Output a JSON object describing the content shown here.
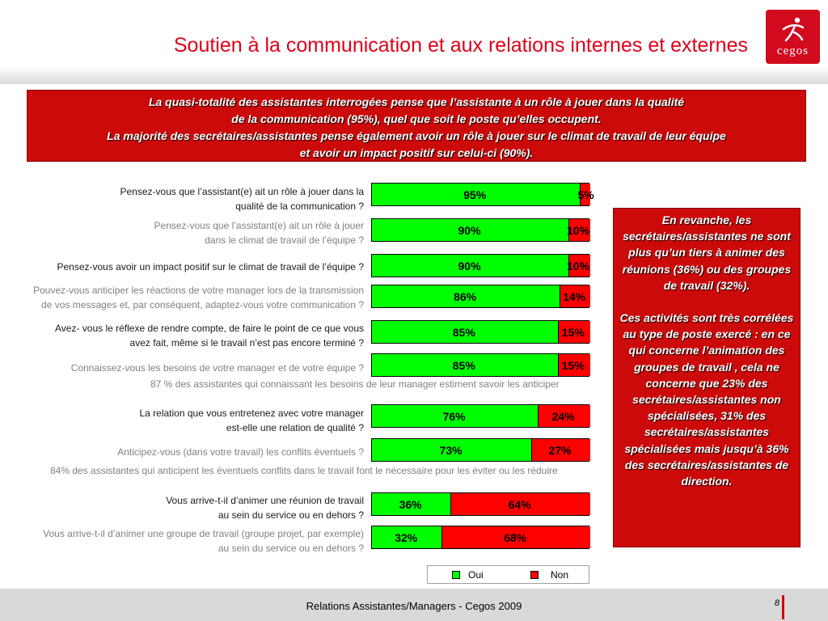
{
  "title": "Soutien à la communication et aux relations internes et externes",
  "logo": {
    "brand": "cegos"
  },
  "banner": {
    "lines": [
      "La quasi-totalité des assistantes interrogées pense que l’assistante à un rôle à jouer dans la qualité",
      "de la communication (95%), quel que soit le poste qu’elles occupent.",
      "La majorité des secrétaires/assistantes pense également avoir un rôle à jouer sur le climat de travail de leur équipe",
      "et avoir un impact positif sur celui-ci (90%)."
    ]
  },
  "side_box": {
    "paragraph1": "En revanche, les secrétaires/assistantes ne sont plus qu’un tiers à animer des réunions (36%) ou des groupes de travail (32%).",
    "paragraph2": "Ces activités sont très corrélées au type de poste exercé : en ce qui concerne l’animation des groupes de travail , cela ne concerne que 23% des secrétaires/assistantes non spécialisées, 31% des secrétaires/assistantes spécialisées mais jusqu’à 36% des secrétaires/assistantes  de direction."
  },
  "chart_data": {
    "type": "bar",
    "orientation": "horizontal",
    "stacked": true,
    "categories": [
      [
        "Pensez-vous que l’assistant(e) ait un rôle à jouer dans la",
        "qualité de la communication ?"
      ],
      [
        "Pensez-vous que l’assistant(e) ait un rôle à jouer",
        "dans le climat de travail de l’équipe ?"
      ],
      [
        "Pensez-vous avoir un impact positif sur le climat de travail de l’équipe ?"
      ],
      [
        "Pouvez-vous anticiper les réactions de votre manager lors de la transmission",
        "de vos messages et, par conséquent, adaptez-vous votre communication ?"
      ],
      [
        "Avez- vous le réflexe de rendre compte, de faire le point de ce que vous",
        "avez fait, même si le travail n’est pas encore terminé ?"
      ],
      [
        "Connaissez-vous les besoins de votre manager et de votre équipe ?"
      ],
      [
        "La relation que vous entretenez avec votre manager",
        "est-elle une relation de qualité ?"
      ],
      [
        "Anticipez-vous (dans votre travail) les conflits éventuels ?"
      ],
      [
        "Vous arrive-t-il d’animer une réunion de travail",
        "au sein du service ou en dehors ?"
      ],
      [
        "Vous arrive-t-il d’animer une groupe de travail (groupe projet, par exemple)",
        "au sein du service ou en dehors ?"
      ]
    ],
    "question_tone": [
      "dark",
      "grey",
      "dark",
      "grey",
      "dark",
      "grey",
      "dark",
      "grey",
      "dark",
      "grey"
    ],
    "series": [
      {
        "name": "Oui",
        "color": "#00ff00",
        "values": [
          95,
          90,
          90,
          86,
          85,
          85,
          76,
          73,
          36,
          32
        ]
      },
      {
        "name": "Non",
        "color": "#ff0000",
        "values": [
          5,
          10,
          10,
          14,
          15,
          15,
          24,
          27,
          64,
          68
        ]
      }
    ],
    "value_labels": {
      "oui": [
        "95%",
        "90%",
        "90%",
        "86%",
        "85%",
        "85%",
        "76%",
        "73%",
        "36%",
        "32%"
      ],
      "non": [
        "5%",
        "10%",
        "10%",
        "14%",
        "15%",
        "15%",
        "24%",
        "27%",
        "64%",
        "68%"
      ]
    },
    "annotations": [
      "87 % des assistantes qui connaissant les besoins de leur manager estiment savoir les anticiper",
      "84% des assistantes qui anticipent les éventuels conflits dans le travail font le nécessaire pour les éviter ou les réduire"
    ],
    "legend": {
      "oui": "Oui",
      "non": "Non",
      "position": "bottom"
    },
    "xlim": [
      0,
      100
    ]
  },
  "footer": {
    "text": "Relations Assistantes/Managers - Cegos 2009",
    "page": "8"
  }
}
